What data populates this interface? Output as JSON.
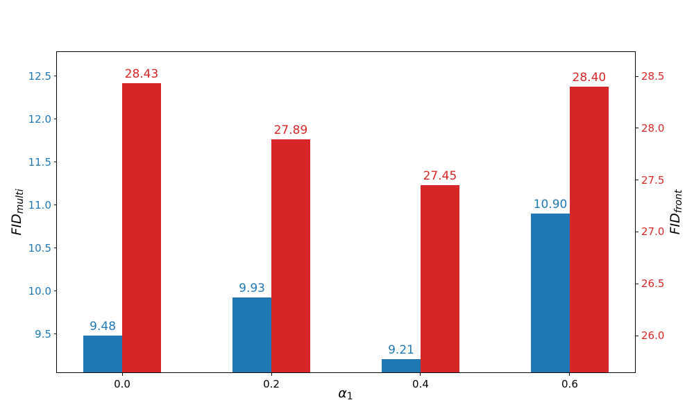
{
  "chart_data": {
    "type": "bar",
    "title": "",
    "xlabel_base": "α",
    "xlabel_sub": "1",
    "x": [
      0.0,
      0.2,
      0.4,
      0.6
    ],
    "x_tick_labels": [
      "0.0",
      "0.2",
      "0.4",
      "0.6"
    ],
    "xlim": [
      -0.0875,
      0.6875
    ],
    "bar_width": 0.052,
    "grid": false,
    "legend": "none",
    "background": "#ffffff",
    "frame_color": "#000000",
    "tick_mark_color": "#000000",
    "x_tick_label_color": "#000000",
    "left_axis": {
      "label_base": "FID",
      "label_sub": "multi",
      "color": "#1f77b4",
      "min": 9.056,
      "max": 12.782,
      "ticks": [
        9.5,
        10.0,
        10.5,
        11.0,
        11.5,
        12.0,
        12.5
      ],
      "tick_labels": [
        "9.5",
        "10.0",
        "10.5",
        "11.0",
        "11.5",
        "12.0",
        "12.5"
      ]
    },
    "right_axis": {
      "label_base": "FID",
      "label_sub": "front",
      "color": "#d62728",
      "min": 25.646,
      "max": 28.734,
      "ticks": [
        26.0,
        26.5,
        27.0,
        27.5,
        28.0,
        28.5
      ],
      "tick_labels": [
        "26.0",
        "26.5",
        "27.0",
        "27.5",
        "28.0",
        "28.5"
      ]
    },
    "series": [
      {
        "name": "FID multi",
        "axis": "left",
        "color": "#1f77b4",
        "values": [
          9.48,
          9.93,
          9.21,
          10.9
        ],
        "value_labels": [
          "9.48",
          "9.93",
          "9.21",
          "10.90"
        ],
        "offset": -0.5
      },
      {
        "name": "FID front",
        "axis": "right",
        "color": "#d62728",
        "values": [
          28.43,
          27.89,
          27.45,
          28.4
        ],
        "value_labels": [
          "28.43",
          "27.89",
          "27.45",
          "28.40"
        ],
        "offset": 0.5
      }
    ]
  }
}
